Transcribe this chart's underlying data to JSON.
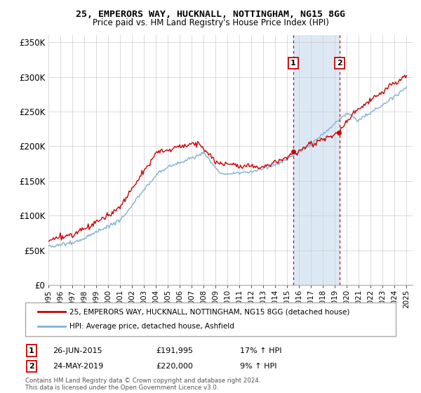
{
  "title": "25, EMPERORS WAY, HUCKNALL, NOTTINGHAM, NG15 8GG",
  "subtitle": "Price paid vs. HM Land Registry's House Price Index (HPI)",
  "ylim": [
    0,
    360000
  ],
  "yticks": [
    0,
    50000,
    100000,
    150000,
    200000,
    250000,
    300000,
    350000
  ],
  "ytick_labels": [
    "£0",
    "£50K",
    "£100K",
    "£150K",
    "£200K",
    "£250K",
    "£300K",
    "£350K"
  ],
  "xlim_start": 1995,
  "xlim_end": 2025.5,
  "marker1_date": 2015.5,
  "marker2_date": 2019.37,
  "marker1_price": 191995,
  "marker2_price": 220000,
  "sale_color": "#cc0000",
  "hpi_color": "#7fb3d3",
  "shaded_color": "#dce9f5",
  "dashed_color": "#cc0000",
  "legend1_text": "25, EMPERORS WAY, HUCKNALL, NOTTINGHAM, NG15 8GG (detached house)",
  "legend2_text": "HPI: Average price, detached house, Ashfield",
  "footnote": "Contains HM Land Registry data © Crown copyright and database right 2024.\nThis data is licensed under the Open Government Licence v3.0.",
  "background_color": "#ffffff"
}
